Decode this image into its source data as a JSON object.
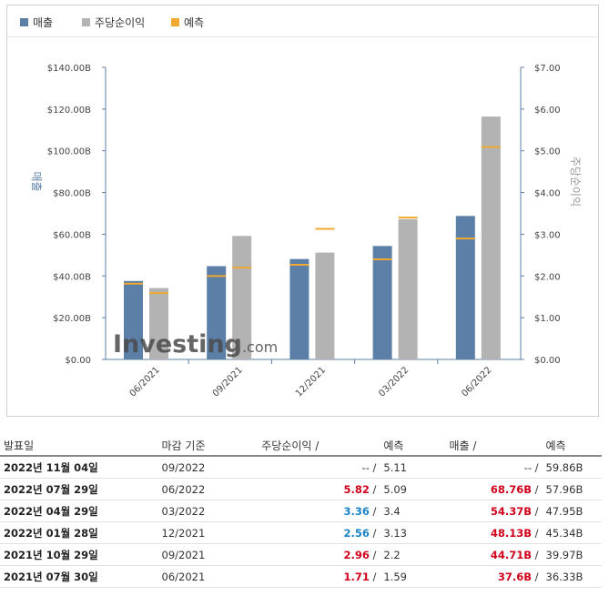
{
  "legend": [
    {
      "label": "매출",
      "color": "#5b7fa6"
    },
    {
      "label": "주당순이익",
      "color": "#b3b3b3"
    },
    {
      "label": "예측",
      "color": "#f0a830"
    }
  ],
  "chart_data": {
    "type": "bar",
    "categories": [
      "06/2021",
      "09/2021",
      "12/2021",
      "03/2022",
      "06/2022"
    ],
    "series": [
      {
        "name": "매출",
        "axis": "left",
        "values": [
          37.6,
          44.71,
          48.13,
          54.37,
          68.76
        ],
        "forecast": [
          36.33,
          39.97,
          45.34,
          47.95,
          57.96
        ],
        "color": "#5b7fa6"
      },
      {
        "name": "주당순이익",
        "axis": "right",
        "values": [
          1.71,
          2.96,
          2.56,
          3.36,
          5.82
        ],
        "forecast": [
          1.59,
          2.2,
          3.13,
          3.4,
          5.09
        ],
        "color": "#b3b3b3"
      }
    ],
    "forecast_color": "#f0a830",
    "ylabel": "매출",
    "y2label": "주당순이익",
    "ylim": [
      0,
      140
    ],
    "y2lim": [
      0,
      7
    ],
    "y_ticks": [
      "$0.00",
      "$20.00B",
      "$40.00B",
      "$60.00B",
      "$80.00B",
      "$100.00B",
      "$120.00B",
      "$140.00B"
    ],
    "y2_ticks": [
      "$0.00",
      "$1.00",
      "$2.00",
      "$3.00",
      "$4.00",
      "$5.00",
      "$6.00",
      "$7.00"
    ],
    "watermark": "Investing.com",
    "grid": false
  },
  "table": {
    "headers": {
      "date": "발표일",
      "period": "마감 기준",
      "eps": "주당순이익",
      "eps_forecast": "예측",
      "revenue": "매출",
      "revenue_forecast": "예측"
    },
    "rows": [
      {
        "date": "2022년 11월 04일",
        "period": "09/2022",
        "eps": "--",
        "eps_class": "neutral",
        "eps_forecast": "5.11",
        "revenue": "--",
        "rev_class": "neutral",
        "revenue_forecast": "59.86B"
      },
      {
        "date": "2022년 07월 29일",
        "period": "06/2022",
        "eps": "5.82",
        "eps_class": "pos",
        "eps_forecast": "5.09",
        "revenue": "68.76B",
        "rev_class": "pos",
        "revenue_forecast": "57.96B"
      },
      {
        "date": "2022년 04월 29일",
        "period": "03/2022",
        "eps": "3.36",
        "eps_class": "neg",
        "eps_forecast": "3.4",
        "revenue": "54.37B",
        "rev_class": "pos",
        "revenue_forecast": "47.95B"
      },
      {
        "date": "2022년 01월 28일",
        "period": "12/2021",
        "eps": "2.56",
        "eps_class": "neg",
        "eps_forecast": "3.13",
        "revenue": "48.13B",
        "rev_class": "pos",
        "revenue_forecast": "45.34B"
      },
      {
        "date": "2021년 10월 29일",
        "period": "09/2021",
        "eps": "2.96",
        "eps_class": "pos",
        "eps_forecast": "2.2",
        "revenue": "44.71B",
        "rev_class": "pos",
        "revenue_forecast": "39.97B"
      },
      {
        "date": "2021년 07월 30일",
        "period": "06/2021",
        "eps": "1.71",
        "eps_class": "pos",
        "eps_forecast": "1.59",
        "revenue": "37.6B",
        "rev_class": "pos",
        "revenue_forecast": "36.33B"
      }
    ]
  }
}
